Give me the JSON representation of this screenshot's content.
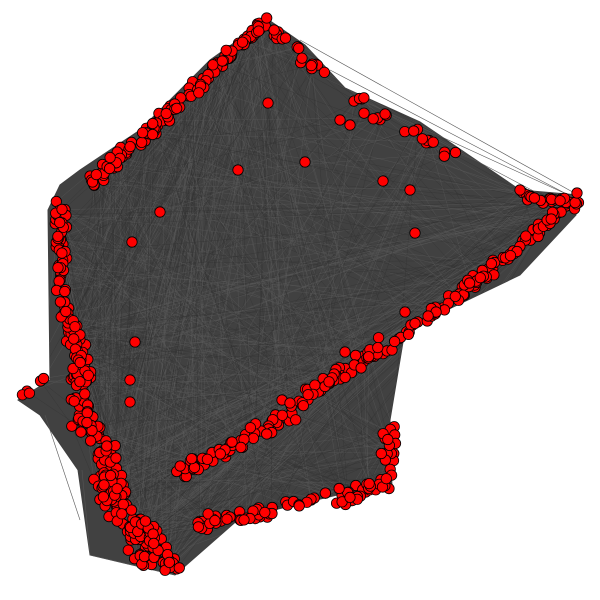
{
  "graph": {
    "type": "network",
    "layout": "force-directed",
    "node_shape": "circle",
    "node_fill": "#ff0000",
    "node_stroke": "#000000",
    "edge_color": "#404040",
    "background": "#ffffff",
    "labels_shown": false
  }
}
